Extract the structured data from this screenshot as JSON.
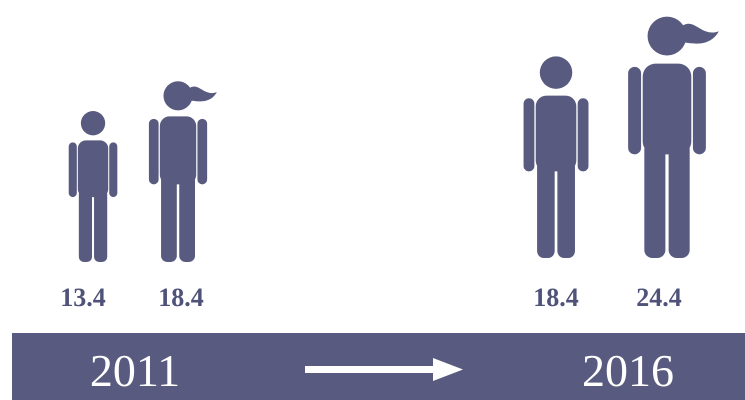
{
  "groups": [
    {
      "year": "2011",
      "labels": [
        "13.4",
        "18.4"
      ]
    },
    {
      "year": "2016",
      "labels": [
        "18.4",
        "24.4"
      ]
    }
  ]
}
